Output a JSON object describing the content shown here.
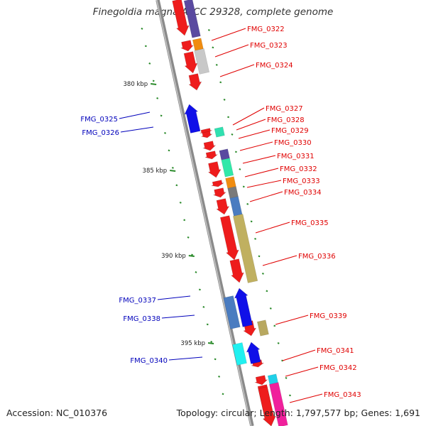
{
  "title": "Finegoldia magna ATCC 29328, complete genome",
  "footer": {
    "accession": "Accession: NC_010376",
    "stats": "Topology: circular; Length: 1,797,577 bp; Genes: 1,691"
  },
  "colors": {
    "backbone": "#8a8a8a",
    "plus_label": "#e00000",
    "minus_label": "#0000bb",
    "tick": "#2a8a2a"
  },
  "scale_labels": [
    "380 kbp",
    "385 kbp",
    "390 kbp",
    "395 kbp"
  ],
  "genes": [
    {
      "name": "FMG_0322",
      "strand": "+"
    },
    {
      "name": "FMG_0323",
      "strand": "+"
    },
    {
      "name": "FMG_0324",
      "strand": "+"
    },
    {
      "name": "FMG_0325",
      "strand": "-"
    },
    {
      "name": "FMG_0326",
      "strand": "-"
    },
    {
      "name": "FMG_0327",
      "strand": "+"
    },
    {
      "name": "FMG_0328",
      "strand": "+"
    },
    {
      "name": "FMG_0329",
      "strand": "+"
    },
    {
      "name": "FMG_0330",
      "strand": "+"
    },
    {
      "name": "FMG_0331",
      "strand": "+"
    },
    {
      "name": "FMG_0332",
      "strand": "+"
    },
    {
      "name": "FMG_0333",
      "strand": "+"
    },
    {
      "name": "FMG_0334",
      "strand": "+"
    },
    {
      "name": "FMG_0335",
      "strand": "+"
    },
    {
      "name": "FMG_0336",
      "strand": "+"
    },
    {
      "name": "FMG_0337",
      "strand": "-"
    },
    {
      "name": "FMG_0338",
      "strand": "-"
    },
    {
      "name": "FMG_0339",
      "strand": "+"
    },
    {
      "name": "FMG_0340",
      "strand": "-"
    },
    {
      "name": "FMG_0341",
      "strand": "+"
    },
    {
      "name": "FMG_0342",
      "strand": "+"
    },
    {
      "name": "FMG_0343",
      "strand": "+"
    }
  ]
}
